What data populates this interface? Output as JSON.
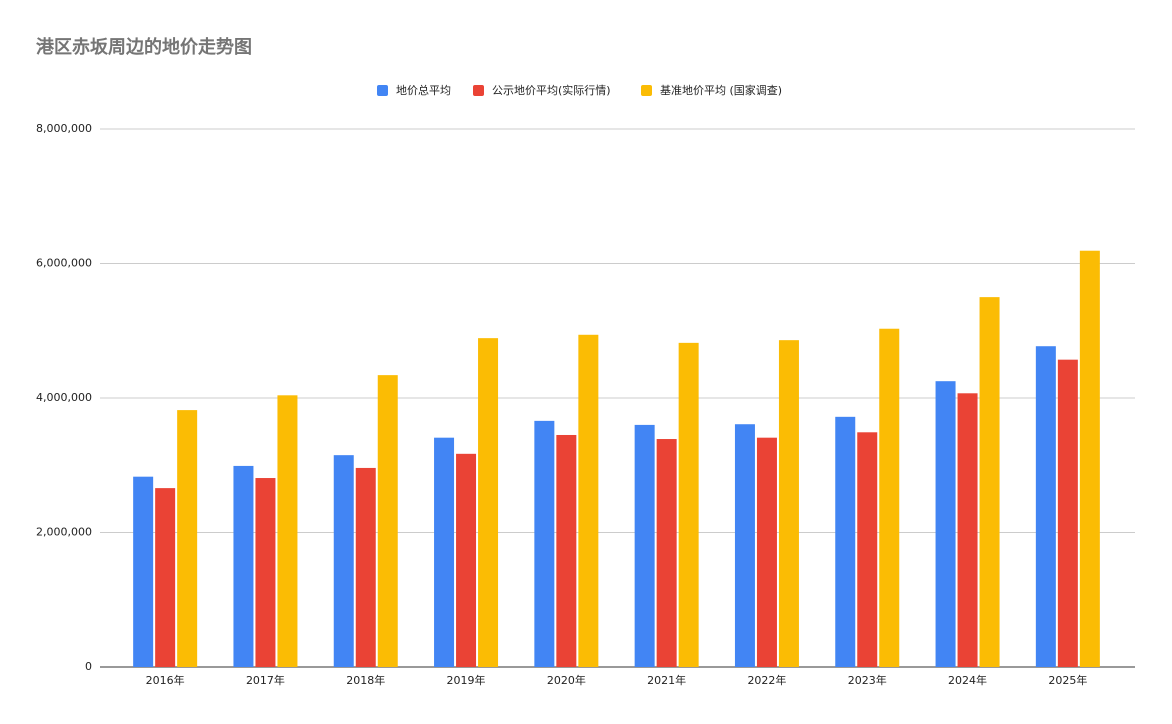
{
  "chart_data": {
    "type": "bar",
    "title": "港区赤坂周边的地价走势图",
    "categories": [
      "2016年",
      "2017年",
      "2018年",
      "2019年",
      "2020年",
      "2021年",
      "2022年",
      "2023年",
      "2024年",
      "2025年"
    ],
    "series": [
      {
        "name": "地价总平均",
        "color": "#4285f4",
        "values": [
          2830000,
          2990000,
          3150000,
          3410000,
          3660000,
          3600000,
          3610000,
          3720000,
          4250000,
          4770000
        ]
      },
      {
        "name": "公示地价平均(实际行情)",
        "color": "#ea4335",
        "values": [
          2660000,
          2810000,
          2960000,
          3170000,
          3450000,
          3390000,
          3410000,
          3490000,
          4070000,
          4570000
        ]
      },
      {
        "name": "基准地价平均 (国家调查)",
        "color": "#fbbc04",
        "values": [
          3820000,
          4040000,
          4340000,
          4890000,
          4940000,
          4820000,
          4860000,
          5030000,
          5500000,
          6190000
        ]
      }
    ],
    "ylim": [
      0,
      8000000
    ],
    "yticks": [
      0,
      {
        "value": 2000000,
        "label": "2,000,000"
      },
      {
        "value": 4000000,
        "label": "4,000,000"
      },
      {
        "value": 6000000,
        "label": "6,000,000"
      },
      {
        "value": 8000000,
        "label": "8,000,000"
      }
    ],
    "grid": true,
    "legend": "top"
  }
}
